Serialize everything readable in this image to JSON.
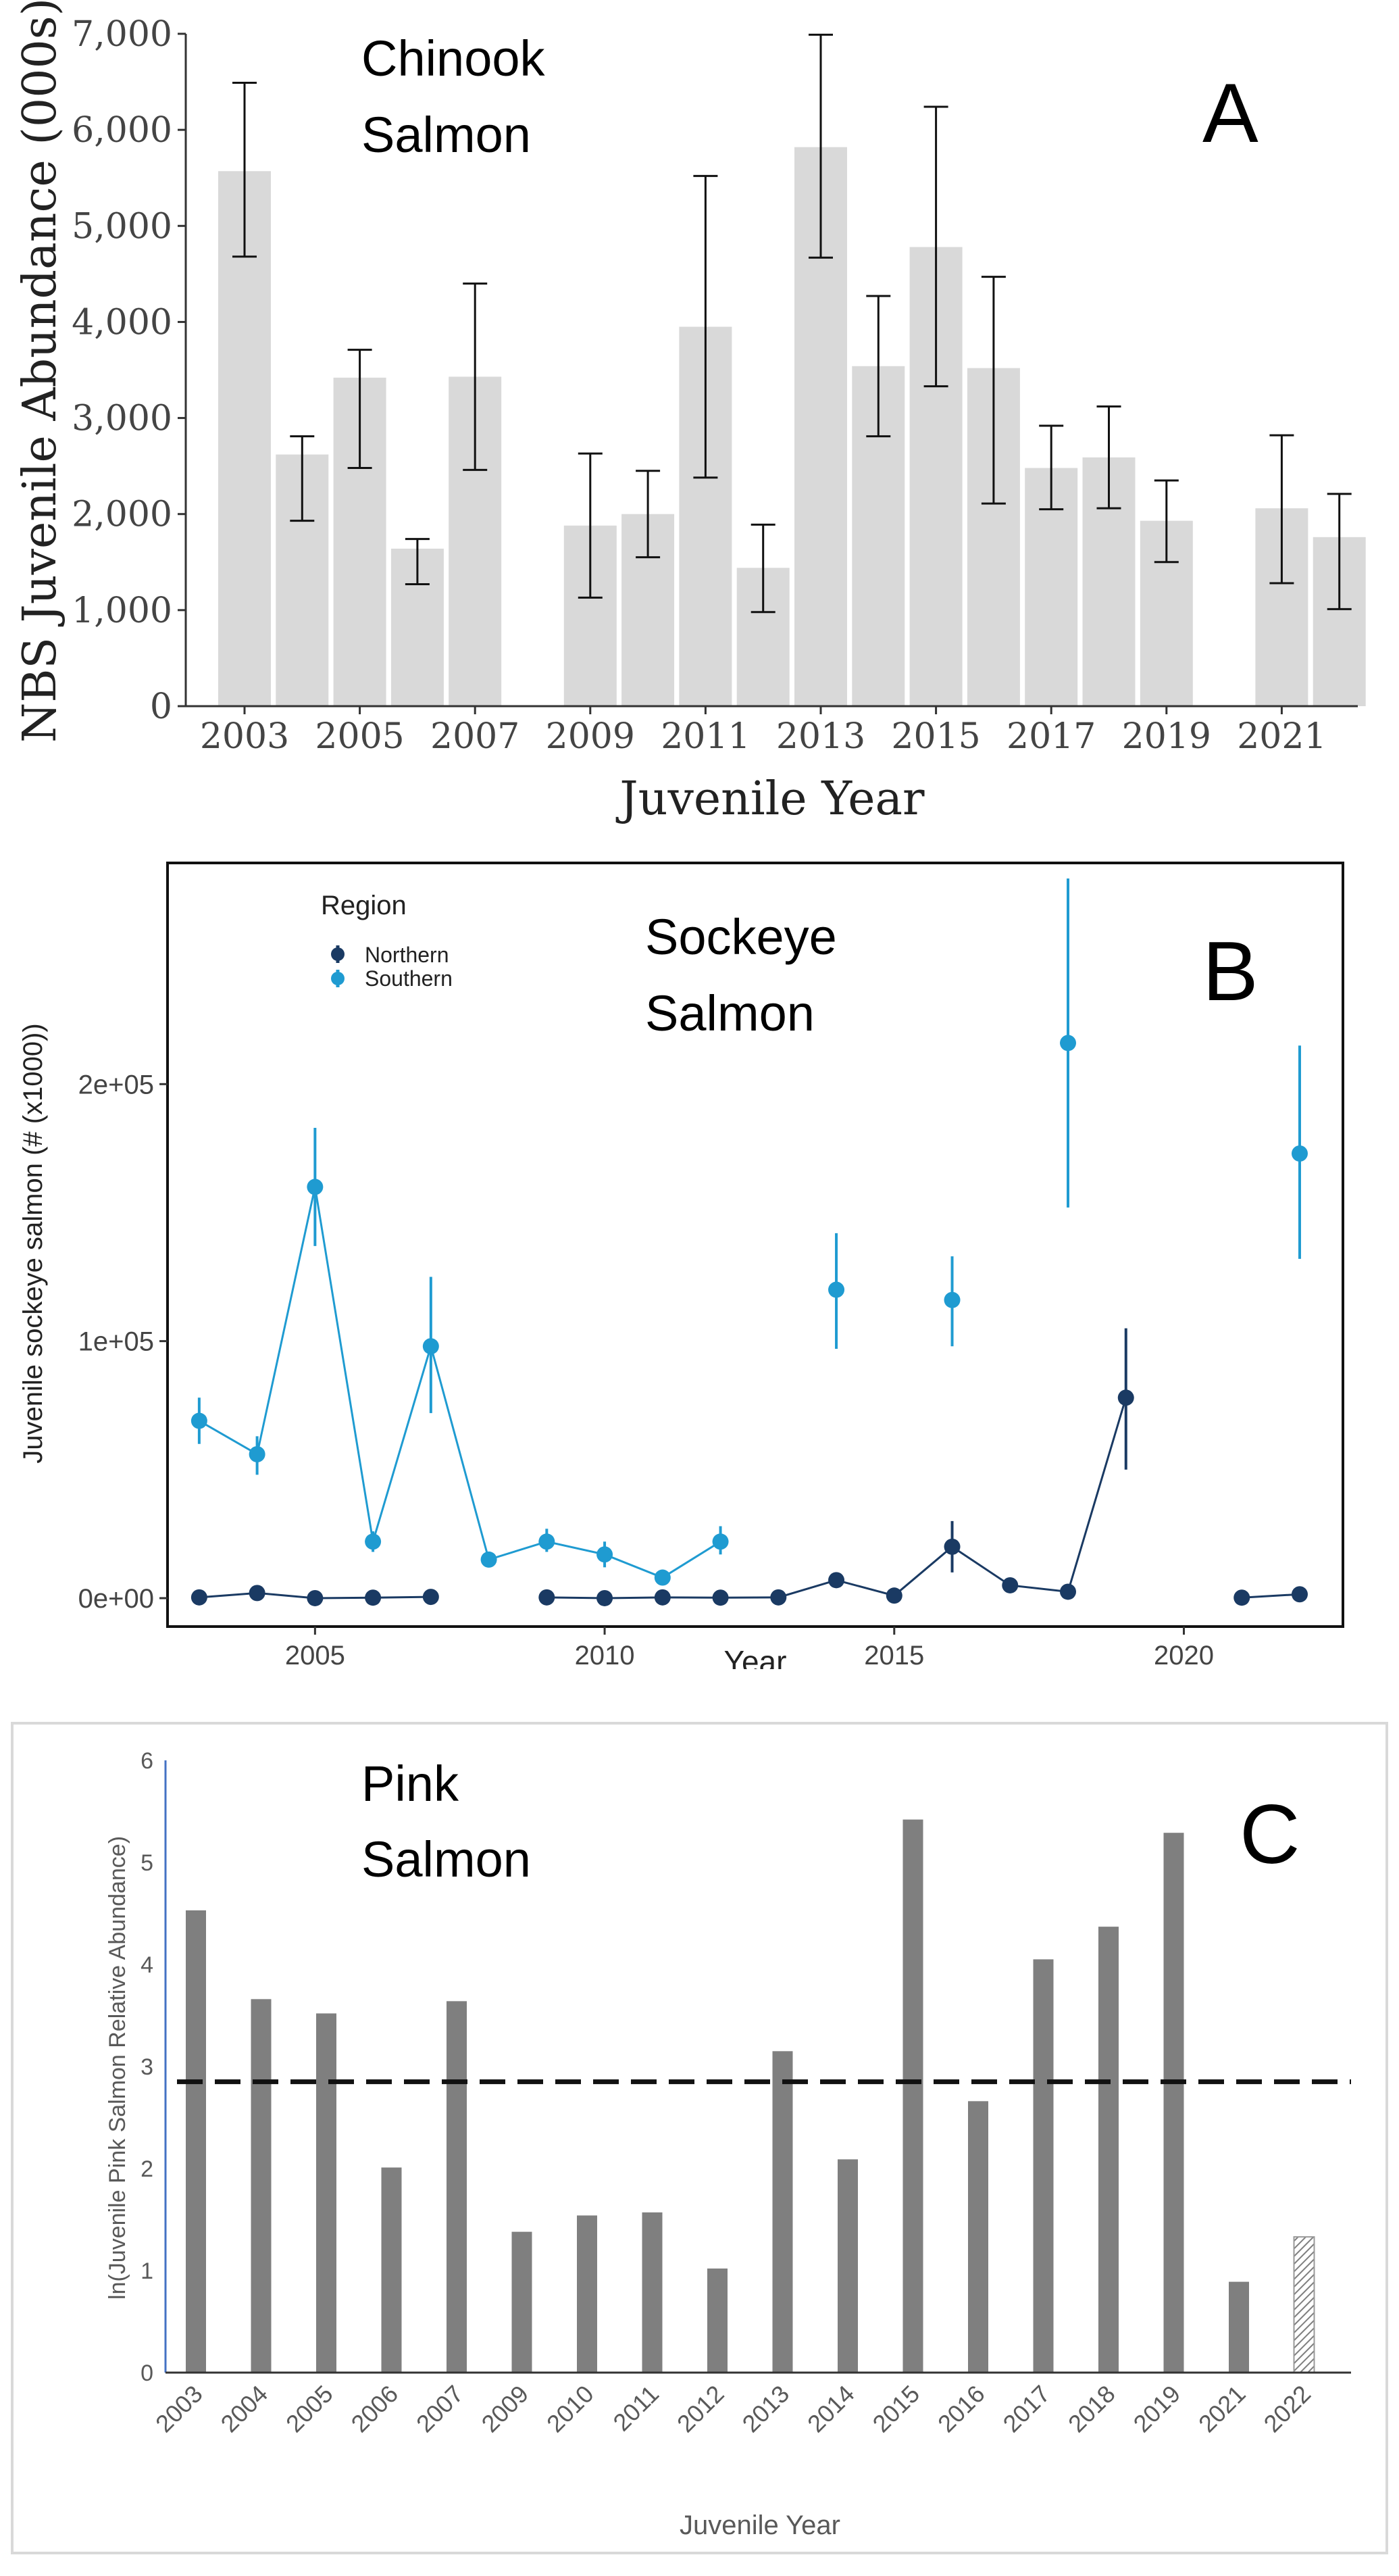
{
  "chart_data": [
    {
      "panel": "A",
      "type": "bar",
      "title_line1": "Chinook",
      "title_line2": "Salmon",
      "panel_label": "A",
      "xlabel": "Juvenile Year",
      "ylabel": "NBS Juvenile Abundance (000s)",
      "ylim": [
        0,
        7000
      ],
      "yticks": [
        0,
        1000,
        2000,
        3000,
        4000,
        5000,
        6000,
        7000
      ],
      "ytick_labels": [
        "0",
        "1,000",
        "2,000",
        "3,000",
        "4,000",
        "5,000",
        "6,000",
        "7,000"
      ],
      "xticks": [
        "2003",
        "2005",
        "2007",
        "2009",
        "2011",
        "2013",
        "2015",
        "2017",
        "2019",
        "2021"
      ],
      "years": [
        2003,
        2004,
        2005,
        2006,
        2007,
        2009,
        2010,
        2011,
        2012,
        2013,
        2014,
        2015,
        2016,
        2017,
        2018,
        2019,
        2021,
        2022
      ],
      "values": [
        5570,
        2620,
        3420,
        1640,
        3430,
        1880,
        2000,
        3950,
        1440,
        5820,
        3540,
        4780,
        3520,
        2480,
        2590,
        1930,
        2060,
        1760
      ],
      "err_low": [
        4680,
        1930,
        2480,
        1270,
        2460,
        1130,
        1550,
        2380,
        980,
        4670,
        2810,
        3330,
        2110,
        2050,
        2060,
        1500,
        1280,
        1010
      ],
      "err_high": [
        6490,
        2810,
        3710,
        1740,
        4400,
        2630,
        2450,
        5520,
        1890,
        6990,
        4270,
        6240,
        4470,
        2920,
        3120,
        2350,
        2820,
        2210
      ],
      "bar_color": "#d9d9d9"
    },
    {
      "panel": "B",
      "type": "line",
      "title_line1": "Sockeye",
      "title_line2": "Salmon",
      "panel_label": "B",
      "xlabel": "Year",
      "ylabel": "Juvenile sockeye salmon (# (x1000))",
      "legend_title": "Region",
      "legend_position": "top-left",
      "xlim": [
        2002.5,
        2022.7
      ],
      "ylim": [
        -10000,
        285000
      ],
      "xticks": [
        2005,
        2010,
        2015,
        2020
      ],
      "xtick_labels": [
        "2005",
        "2010",
        "2015",
        "2020"
      ],
      "yticks": [
        0,
        100000,
        200000
      ],
      "ytick_labels": [
        "0e+00",
        "1e+05",
        "2e+05"
      ],
      "series": [
        {
          "name": "Northern",
          "color": "#1a3a63",
          "segments": [
            [
              {
                "x": 2003,
                "y": 300
              },
              {
                "x": 2004,
                "y": 2000
              },
              {
                "x": 2005,
                "y": 0
              },
              {
                "x": 2006,
                "y": 200
              },
              {
                "x": 2007,
                "y": 500
              }
            ],
            [
              {
                "x": 2009,
                "y": 300
              },
              {
                "x": 2010,
                "y": 0
              },
              {
                "x": 2011,
                "y": 300
              },
              {
                "x": 2012,
                "y": 200
              },
              {
                "x": 2013,
                "y": 300
              },
              {
                "x": 2014,
                "y": 7000
              },
              {
                "x": 2015,
                "y": 1000
              },
              {
                "x": 2016,
                "y": 20000,
                "lo": 10000,
                "hi": 30000
              },
              {
                "x": 2017,
                "y": 5000
              },
              {
                "x": 2018,
                "y": 2500
              },
              {
                "x": 2019,
                "y": 78000,
                "lo": 50000,
                "hi": 105000
              }
            ],
            [
              {
                "x": 2021,
                "y": 200
              },
              {
                "x": 2022,
                "y": 1500
              }
            ]
          ]
        },
        {
          "name": "Southern",
          "color": "#1f9bd1",
          "segments": [
            [
              {
                "x": 2003,
                "y": 69000,
                "lo": 60000,
                "hi": 78000
              },
              {
                "x": 2004,
                "y": 56000,
                "lo": 48000,
                "hi": 63000
              },
              {
                "x": 2005,
                "y": 160000,
                "lo": 137000,
                "hi": 183000
              },
              {
                "x": 2006,
                "y": 22000,
                "lo": 18000,
                "hi": 26000
              },
              {
                "x": 2007,
                "y": 98000,
                "lo": 72000,
                "hi": 125000
              },
              {
                "x": 2008,
                "y": 15000,
                "lo": 12000,
                "hi": 18000
              },
              {
                "x": 2009,
                "y": 22000,
                "lo": 18000,
                "hi": 27000
              },
              {
                "x": 2010,
                "y": 17000,
                "lo": 12000,
                "hi": 22000
              },
              {
                "x": 2011,
                "y": 8000,
                "lo": 6000,
                "hi": 10000
              },
              {
                "x": 2012,
                "y": 22000,
                "lo": 17000,
                "hi": 28000
              }
            ],
            [
              {
                "x": 2014,
                "y": 120000,
                "lo": 97000,
                "hi": 142000
              }
            ],
            [
              {
                "x": 2016,
                "y": 116000,
                "lo": 98000,
                "hi": 133000
              }
            ],
            [
              {
                "x": 2018,
                "y": 216000,
                "lo": 152000,
                "hi": 280000
              }
            ],
            [
              {
                "x": 2022,
                "y": 173000,
                "lo": 132000,
                "hi": 215000
              }
            ]
          ]
        }
      ]
    },
    {
      "panel": "C",
      "type": "bar",
      "title_line1": "Pink",
      "title_line2": "Salmon",
      "panel_label": "C",
      "xlabel": "Juvenile Year",
      "ylabel": "ln(Juvenile Pink Salmon Relative Abundance)",
      "ylim": [
        0,
        6
      ],
      "yticks": [
        0,
        1,
        2,
        3,
        4,
        5,
        6
      ],
      "ytick_labels": [
        "0",
        "1",
        "2",
        "3",
        "4",
        "5",
        "6"
      ],
      "categories": [
        "2003",
        "2004",
        "2005",
        "2006",
        "2007",
        "2009",
        "2010",
        "2011",
        "2012",
        "2013",
        "2014",
        "2015",
        "2016",
        "2017",
        "2018",
        "2019",
        "2021",
        "2022"
      ],
      "values": [
        4.53,
        3.66,
        3.52,
        2.01,
        3.64,
        1.38,
        1.54,
        1.57,
        1.02,
        3.15,
        2.09,
        5.42,
        2.66,
        4.05,
        4.37,
        5.29,
        0.89,
        1.33
      ],
      "hatched": [
        false,
        false,
        false,
        false,
        false,
        false,
        false,
        false,
        false,
        false,
        false,
        false,
        false,
        false,
        false,
        false,
        false,
        true
      ],
      "reference_line": 2.85,
      "bar_color": "#7f7f7f"
    }
  ]
}
